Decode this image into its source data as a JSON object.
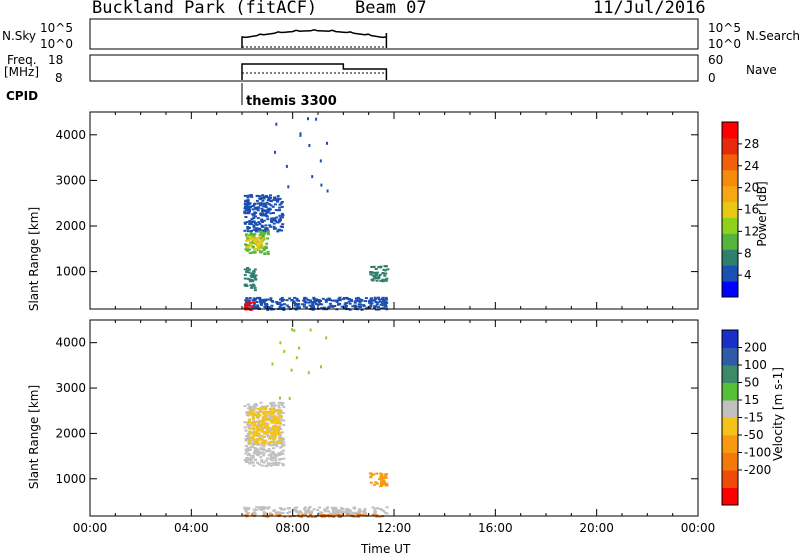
{
  "header": {
    "title": "Buckland Park (fitACF)",
    "beam": "Beam 07",
    "date": "11/Jul/2016"
  },
  "top_panels": {
    "nsky_label": "N.Sky",
    "nsky_ticks": [
      "10^5",
      "10^0"
    ],
    "nsky_right_ticks": [
      "10^5",
      "10^0"
    ],
    "nsearch_label": "N.Search",
    "freq_label_1": "Freq.",
    "freq_label_2": "[MHz]",
    "freq_ticks": [
      "18",
      "8"
    ],
    "nave_ticks": [
      "60",
      "0"
    ],
    "nave_label": "Nave",
    "cpid_label": "CPID",
    "cpid_value": "themis 3300"
  },
  "axes": {
    "x_ticks": [
      "00:00",
      "04:00",
      "08:00",
      "12:00",
      "16:00",
      "20:00",
      "00:00"
    ],
    "x_label": "Time UT",
    "y_label": "Slant Range [km]",
    "y_ticks": [
      "1000",
      "2000",
      "3000",
      "4000"
    ]
  },
  "power_colorbar": {
    "label": "Power [dB]",
    "ticks": [
      "4",
      "8",
      "12",
      "16",
      "20",
      "24",
      "28"
    ],
    "colors": [
      "#0000ff",
      "#1b4fb2",
      "#2f7f6f",
      "#55b43c",
      "#8fd11a",
      "#e8c814",
      "#f7a614",
      "#f58a0c",
      "#f2600a",
      "#e82a0c",
      "#ff0000"
    ]
  },
  "velocity_colorbar": {
    "label": "Velocity [m s-1]",
    "ticks": [
      "200",
      "100",
      "50",
      "15",
      "-15",
      "-50",
      "-100",
      "-200"
    ],
    "colors": [
      "#1a2fc8",
      "#2f5aa8",
      "#3b8a68",
      "#54c038",
      "#c0c0c0",
      "#f5c21a",
      "#f79a10",
      "#f5780a",
      "#ee4a0a",
      "#ff0000"
    ]
  },
  "chart_data": {
    "type": "heatmap",
    "x_range_hours": [
      0,
      24
    ],
    "y_range_km": [
      180,
      4500
    ],
    "observation_window_hours": [
      6.0,
      11.7
    ],
    "title": "Buckland Park (fitACF)",
    "xlabel": "Time UT",
    "ylabel": "Slant Range [km]",
    "power_panel": {
      "clusters": [
        {
          "t": [
            6.05,
            7.6
          ],
          "r": [
            1900,
            2700
          ],
          "color": "#1b4fb2"
        },
        {
          "t": [
            6.05,
            7.0
          ],
          "r": [
            1400,
            1900
          ],
          "color": "#55b43c"
        },
        {
          "t": [
            6.1,
            6.8
          ],
          "r": [
            1500,
            1800
          ],
          "color": "#e8c814"
        },
        {
          "t": [
            6.05,
            11.7
          ],
          "r": [
            180,
            450
          ],
          "color": "#1b4fb2"
        },
        {
          "t": [
            6.05,
            6.4
          ],
          "r": [
            180,
            350
          ],
          "color": "#ff0000"
        },
        {
          "t": [
            6.05,
            6.5
          ],
          "r": [
            600,
            1100
          ],
          "color": "#2f7f6f"
        },
        {
          "t": [
            11.0,
            11.7
          ],
          "r": [
            800,
            1150
          ],
          "color": "#2f7f6f"
        }
      ]
    },
    "velocity_panel": {
      "clusters": [
        {
          "t": [
            6.05,
            7.6
          ],
          "r": [
            1300,
            2700
          ],
          "color": "#c0c0c0"
        },
        {
          "t": [
            6.05,
            11.7
          ],
          "r": [
            180,
            250
          ],
          "color": "#f5780a"
        },
        {
          "t": [
            6.05,
            11.7
          ],
          "r": [
            250,
            400
          ],
          "color": "#c0c0c0"
        },
        {
          "t": [
            6.2,
            7.5
          ],
          "r": [
            1800,
            2600
          ],
          "color": "#f5c21a"
        },
        {
          "t": [
            11.0,
            11.7
          ],
          "r": [
            850,
            1150
          ],
          "color": "#f79a10"
        }
      ]
    }
  }
}
